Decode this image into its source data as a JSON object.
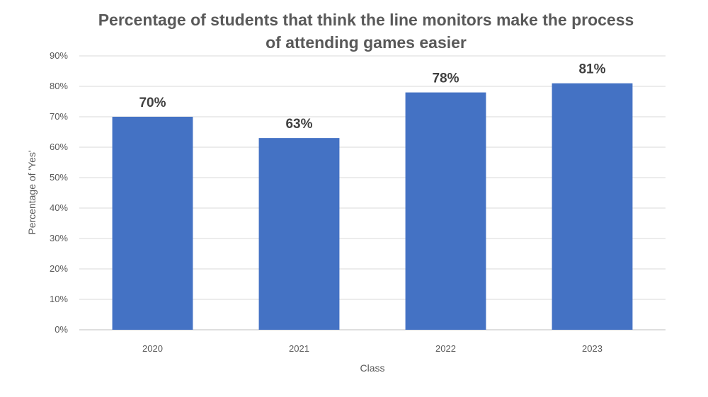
{
  "chart_data": {
    "type": "bar",
    "title": "Percentage of students that think the line monitors make the process of attending games easier",
    "title_lines": [
      "Percentage of students that think the line monitors make the process",
      "of attending games easier"
    ],
    "xlabel": "Class",
    "ylabel": "Percentage of 'Yes'",
    "categories": [
      "2020",
      "2021",
      "2022",
      "2023"
    ],
    "values": [
      70,
      63,
      78,
      81
    ],
    "data_labels": [
      "70%",
      "63%",
      "78%",
      "81%"
    ],
    "ylim": [
      0,
      90
    ],
    "yticks": [
      0,
      10,
      20,
      30,
      40,
      50,
      60,
      70,
      80,
      90
    ],
    "ytick_labels": [
      "0%",
      "10%",
      "20%",
      "30%",
      "40%",
      "50%",
      "60%",
      "70%",
      "80%",
      "90%"
    ],
    "grid": true,
    "legend": "none",
    "bar_color": "#4472C4"
  }
}
